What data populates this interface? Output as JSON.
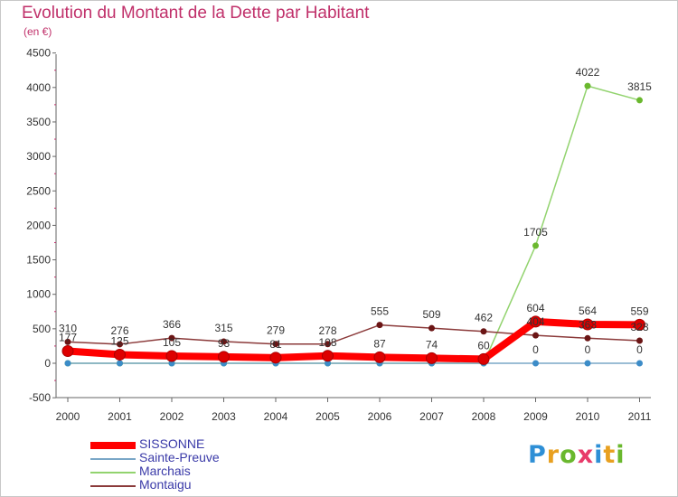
{
  "title": "Evolution du Montant de la Dette par Habitant",
  "subtitle": "(en €)",
  "logo": {
    "text": "Proxiti",
    "letters": [
      {
        "ch": "P",
        "color": "#2e8fd6"
      },
      {
        "ch": "r",
        "color": "#e8a020"
      },
      {
        "ch": "o",
        "color": "#6ab82e"
      },
      {
        "ch": "x",
        "color": "#e83a6a"
      },
      {
        "ch": "i",
        "color": "#2e8fd6"
      },
      {
        "ch": "t",
        "color": "#e8a020"
      },
      {
        "ch": "i",
        "color": "#6ab82e"
      }
    ]
  },
  "chart_data": {
    "type": "line",
    "x": [
      "2000",
      "2001",
      "2002",
      "2003",
      "2004",
      "2005",
      "2006",
      "2007",
      "2008",
      "2009",
      "2010",
      "2011"
    ],
    "ylim": [
      -500,
      4500
    ],
    "yticks": [
      "-500",
      "0",
      "500",
      "1000",
      "1500",
      "2000",
      "2500",
      "3000",
      "3500",
      "4000",
      "4500"
    ],
    "grid": false,
    "legend_position": "bottom-left",
    "series": [
      {
        "name": "Marchais",
        "color": "#92d36e",
        "point_color": "#6ab82e",
        "width": 1.5,
        "values": [
          0,
          0,
          0,
          0,
          0,
          0,
          0,
          0,
          0,
          1705,
          4022,
          3815
        ],
        "labels": [
          "",
          "",
          "",
          "",
          "",
          "",
          "",
          "",
          "",
          "1705",
          "4022",
          "3815"
        ]
      },
      {
        "name": "Sainte-Preuve",
        "color": "#7aa7c7",
        "point_color": "#3c8cc8",
        "width": 1.5,
        "values": [
          0,
          0,
          0,
          0,
          0,
          0,
          0,
          0,
          0,
          0,
          0,
          0
        ],
        "labels": [
          "",
          "",
          "",
          "",
          "",
          "",
          "",
          "",
          "",
          "0",
          "0",
          "0"
        ]
      },
      {
        "name": "Montaigu",
        "color": "#8b3a3a",
        "point_color": "#6b1515",
        "width": 1.5,
        "values": [
          310,
          276,
          366,
          315,
          279,
          278,
          555,
          509,
          462,
          404,
          363,
          328
        ],
        "labels": [
          "310",
          "276",
          "366",
          "315",
          "279",
          "278",
          "555",
          "509",
          "462",
          "404",
          "363",
          "328"
        ]
      },
      {
        "name": "SISSONNE",
        "color": "#ff0000",
        "point_color": "#dd0000",
        "width": 8,
        "values": [
          177,
          125,
          105,
          93,
          81,
          108,
          87,
          74,
          60,
          604,
          564,
          559
        ],
        "labels": [
          "177",
          "125",
          "105",
          "93",
          "81",
          "108",
          "87",
          "74",
          "60",
          "604",
          "564",
          "559"
        ]
      }
    ],
    "legend_order": [
      "SISSONNE",
      "Sainte-Preuve",
      "Marchais",
      "Montaigu"
    ]
  }
}
